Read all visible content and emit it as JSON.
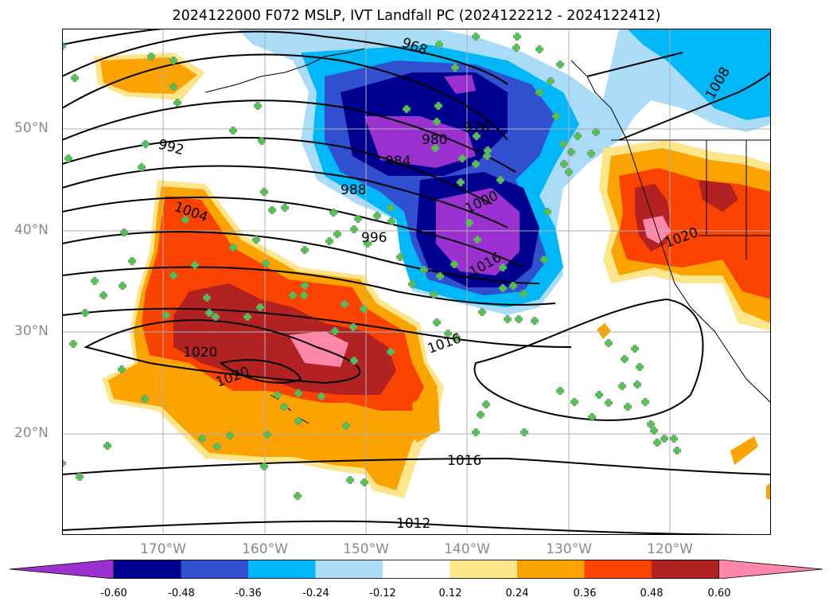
{
  "title": "2024122000 F072 MSLP, IVT Landfall PC (2024122212 - 2024122412)",
  "latitude_labels": [
    "50°N",
    "40°N",
    "30°N",
    "20°N"
  ],
  "longitude_labels": [
    "170°W",
    "160°W",
    "150°W",
    "140°W",
    "130°W",
    "120°W"
  ],
  "isobar_labels": [
    "968",
    "976",
    "980",
    "984",
    "988",
    "992",
    "996",
    "1000",
    "1004",
    "1008",
    "1012",
    "1016",
    "1016",
    "1016",
    "1020",
    "1020",
    "1020"
  ],
  "colorbar": {
    "ticks": [
      "-0.60",
      "-0.48",
      "-0.36",
      "-0.24",
      "-0.12",
      "0.12",
      "0.24",
      "0.36",
      "0.48",
      "0.60"
    ],
    "colors": [
      "#9b30d0",
      "#000090",
      "#3050d0",
      "#00b8f8",
      "#aadcf8",
      "#ffffff",
      "#fde58c",
      "#fba300",
      "#fa4300",
      "#b22222",
      "#ff88aa"
    ]
  },
  "colors": {
    "station_marker": "#44cc44",
    "gridline": "#b0b0b0",
    "isobar": "#000000"
  }
}
